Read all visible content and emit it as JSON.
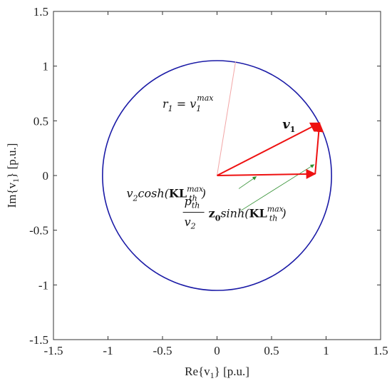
{
  "chart_data": {
    "type": "line",
    "xlabel": "Re{v",
    "xlabel_sub": "1",
    "xlabel_unit": "} [p.u.]",
    "ylabel": "Im{v",
    "ylabel_sub": "1",
    "ylabel_unit": "} [p.u.]",
    "xlim": [
      -1.5,
      1.5
    ],
    "ylim": [
      -1.5,
      1.5
    ],
    "xticks": [
      -1.5,
      -1,
      -0.5,
      0,
      0.5,
      1,
      1.5
    ],
    "xtick_labels": [
      "-1.5",
      "-1",
      "-0.5",
      "0",
      "0.5",
      "1",
      "1.5"
    ],
    "yticks": [
      -1.5,
      -1,
      -0.5,
      0,
      0.5,
      1,
      1.5
    ],
    "ytick_labels": [
      "-1.5",
      "-1",
      "-0.5",
      "0",
      "0.5",
      "1",
      "1.5"
    ],
    "grid": false,
    "circle": {
      "center": [
        0,
        0
      ],
      "radius": 1.05,
      "color": "#1a1aa6"
    },
    "radius_line": {
      "from": [
        0,
        0
      ],
      "to": [
        0.17,
        1.04
      ],
      "color": "#f2a6a6"
    },
    "vectors": [
      {
        "from": [
          0,
          0
        ],
        "to": [
          0.9,
          0.015
        ],
        "color": "#ee1111"
      },
      {
        "from": [
          0.9,
          0.015
        ],
        "to": [
          0.94,
          0.48
        ],
        "color": "#ee1111"
      },
      {
        "from": [
          0,
          0
        ],
        "to": [
          0.94,
          0.48
        ],
        "color": "#ee1111"
      }
    ],
    "pointers": [
      {
        "from": [
          0.2,
          -0.12
        ],
        "to": [
          0.36,
          -0.01
        ],
        "color": "#2f8f2f"
      },
      {
        "from": [
          0.22,
          -0.32
        ],
        "to": [
          0.89,
          0.1
        ],
        "color": "#2f8f2f"
      }
    ],
    "annotations": {
      "r1": {
        "base": "r",
        "sub": "1",
        "eq": " = v",
        "sub2": "1",
        "sup2": "max",
        "at": [
          -0.5,
          0.62
        ]
      },
      "v1": {
        "base": "v",
        "sub": "1",
        "at": [
          0.6,
          0.43
        ]
      },
      "term1": {
        "pre": "v",
        "sub": "2",
        "mid": "cosh(",
        "bold": "K",
        "L": "L",
        "sup": "max",
        "lsub": "th",
        "post": ")",
        "at": [
          -0.83,
          -0.2
        ]
      },
      "term2": {
        "num": "p",
        "num_sub": "th",
        "den": "v",
        "den_sub": "2",
        "z": "z",
        "z_sub": "0",
        "mid": "sinh(",
        "bold": "K",
        "L": "L",
        "sup": "max",
        "lsub": "th",
        "post": ")",
        "at": [
          -0.3,
          -0.35
        ]
      }
    }
  }
}
